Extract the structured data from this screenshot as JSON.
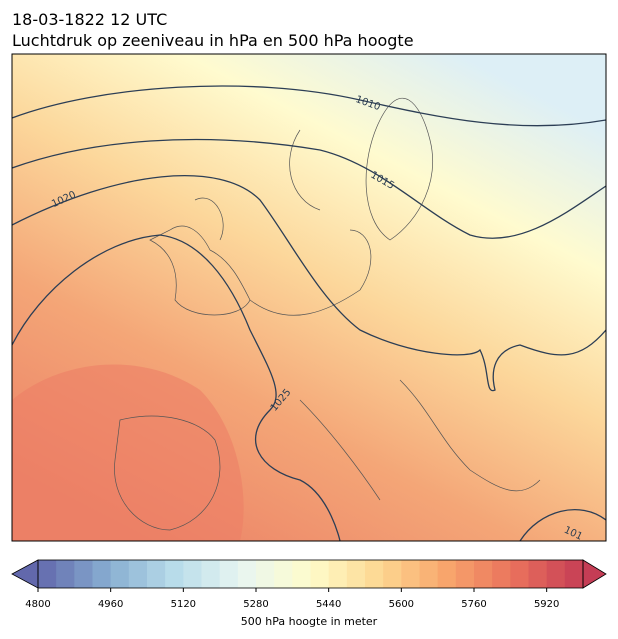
{
  "title": "18-03-1822 12 UTC",
  "subtitle": "Luchtdruk op zeeniveau in hPa en 500 hPa hoogte",
  "contour_labels": [
    "1010",
    "1015",
    "1020",
    "1025",
    "101"
  ],
  "colorbar": {
    "label": "500 hPa hoogte in meter",
    "range": [
      4800,
      6000
    ],
    "step": 40,
    "ticks": [
      4800,
      4960,
      5120,
      5280,
      5440,
      5600,
      5760,
      5920
    ],
    "colors": [
      "#6268ac",
      "#86acd0",
      "#b8dcea",
      "#e9f6f1",
      "#fefccb",
      "#fdd892",
      "#f8a56c",
      "#e9705c",
      "#c53d55"
    ]
  }
}
